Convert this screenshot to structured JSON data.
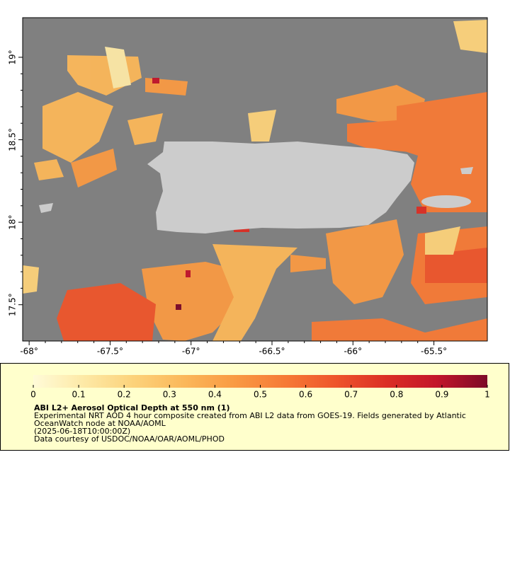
{
  "map": {
    "xlim": [
      -68.04,
      -65.17
    ],
    "ylim": [
      17.28,
      19.24
    ],
    "xticks": [
      {
        "value": -68,
        "label": "-68°"
      },
      {
        "value": -67.5,
        "label": "-67.5°"
      },
      {
        "value": -67,
        "label": "-67°"
      },
      {
        "value": -66.5,
        "label": "-66.5°"
      },
      {
        "value": -66,
        "label": "-66°"
      },
      {
        "value": -65.5,
        "label": "-65.5°"
      }
    ],
    "yticks": [
      {
        "value": 17.5,
        "label": "17.5°"
      },
      {
        "value": 18,
        "label": "18°"
      },
      {
        "value": 18.5,
        "label": "18.5°"
      },
      {
        "value": 19,
        "label": "19°"
      }
    ]
  },
  "colorbar": {
    "lim": [
      0,
      1
    ],
    "ticks": [
      0,
      0.1,
      0.2,
      0.3,
      0.4,
      0.5,
      0.6,
      0.7,
      0.8,
      0.9,
      1
    ],
    "colors": [
      "#fffbd8",
      "#fde9a6",
      "#fcd27a",
      "#fbb75a",
      "#f99a43",
      "#f67a36",
      "#ee552b",
      "#db2e25",
      "#c3152a",
      "#7d0a28"
    ]
  },
  "caption": {
    "title": "ABI L2+ Aerosol Optical Depth at 550 nm (1)",
    "lines": [
      "Experimental NRT AOD 4 hour composite created from ABI L2 data from GOES-19. Fields generated by Atlantic",
      "OceanWatch node at NOAA/AOML",
      "(2025-06-18T10:00:00Z)",
      "Data courtesy of USDOC/NOAA/OAR/AOML/PHOD"
    ]
  }
}
